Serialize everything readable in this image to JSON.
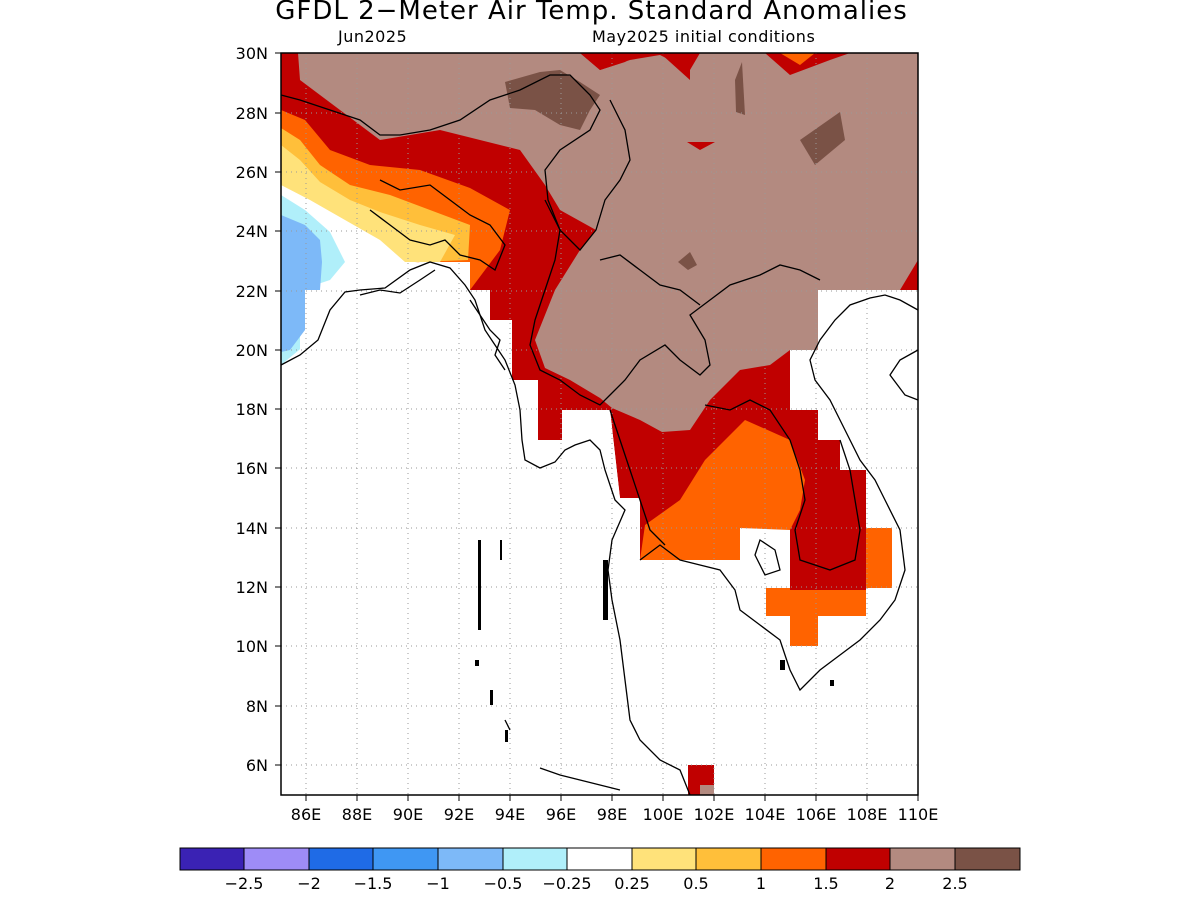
{
  "title": "GFDL 2−Meter Air Temp. Standard Anomalies",
  "subtitle_left": "Jun2025",
  "subtitle_right": "May2025 initial conditions",
  "map": {
    "lon_range": [
      85,
      110
    ],
    "lat_range": [
      5,
      30
    ],
    "lon_ticks": [
      "86E",
      "88E",
      "90E",
      "92E",
      "94E",
      "96E",
      "98E",
      "100E",
      "102E",
      "104E",
      "106E",
      "108E",
      "110E"
    ],
    "lat_ticks": [
      "30N",
      "28N",
      "26N",
      "24N",
      "22N",
      "20N",
      "18N",
      "16N",
      "14N",
      "12N",
      "10N",
      "8N",
      "6N"
    ]
  },
  "colorbar": {
    "colors": [
      "#3a22b4",
      "#9e8cf7",
      "#1f6be6",
      "#3f97f3",
      "#7db9f8",
      "#b0effa",
      "#ffffff",
      "#ffe27a",
      "#ffbf3a",
      "#ff6300",
      "#c00000",
      "#b38a80",
      "#7a5246"
    ],
    "labels": [
      "−2.5",
      "−2",
      "−1.5",
      "−1",
      "−0.5",
      "−0.25",
      "0.25",
      "0.5",
      "1",
      "1.5",
      "2",
      "2.5"
    ]
  }
}
